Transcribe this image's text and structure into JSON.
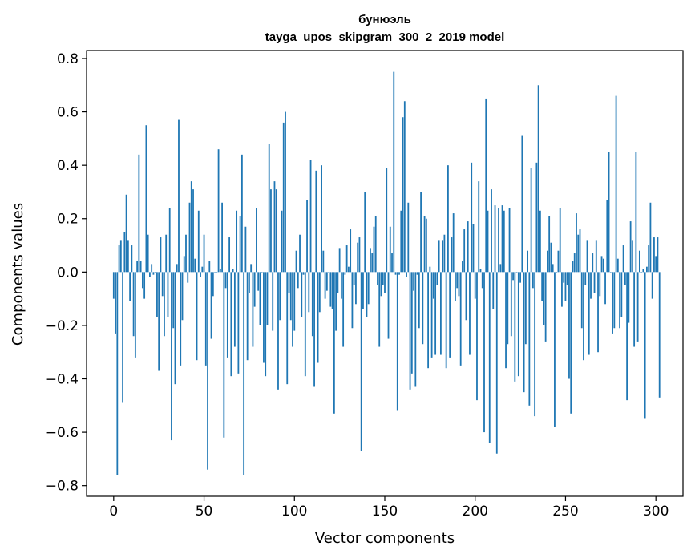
{
  "chart_data": {
    "type": "bar",
    "title": "бунюэль",
    "subtitle": "tayga_upos_skipgram_300_2_2019 model",
    "xlabel": "Vector components",
    "ylabel": "Components values",
    "xlim": [
      -15,
      315
    ],
    "ylim": [
      -0.84,
      0.83
    ],
    "xticks": [
      0,
      50,
      100,
      150,
      200,
      250,
      300
    ],
    "xtick_labels": [
      "0",
      "50",
      "100",
      "150",
      "200",
      "250",
      "300"
    ],
    "yticks": [
      -0.8,
      -0.6,
      -0.4,
      -0.2,
      0.0,
      0.2,
      0.4,
      0.6,
      0.8
    ],
    "ytick_labels": [
      "−0.8",
      "−0.6",
      "−0.4",
      "−0.2",
      "0.0",
      "0.2",
      "0.4",
      "0.6",
      "0.8"
    ],
    "grid": false,
    "bar_color": "#1f77b4",
    "values": [
      -0.1,
      -0.23,
      -0.76,
      0.1,
      0.12,
      -0.49,
      0.15,
      0.29,
      0.12,
      -0.11,
      0.1,
      -0.24,
      -0.32,
      0.04,
      0.44,
      0.04,
      -0.06,
      -0.1,
      0.55,
      0.14,
      -0.02,
      0.03,
      -0.01,
      0.0,
      -0.17,
      -0.37,
      0.13,
      -0.09,
      -0.24,
      0.14,
      -0.17,
      0.24,
      -0.63,
      -0.21,
      -0.42,
      0.03,
      0.57,
      -0.35,
      -0.18,
      0.06,
      0.14,
      -0.04,
      0.26,
      0.34,
      0.31,
      0.05,
      -0.33,
      0.23,
      -0.02,
      0.02,
      0.14,
      -0.35,
      -0.74,
      0.04,
      -0.25,
      -0.09,
      0.0,
      0.0,
      0.46,
      0.01,
      0.26,
      -0.62,
      -0.06,
      -0.32,
      0.13,
      -0.39,
      0.01,
      -0.28,
      0.23,
      -0.38,
      0.21,
      0.44,
      -0.76,
      0.17,
      -0.33,
      -0.08,
      0.03,
      -0.28,
      -0.13,
      0.24,
      -0.07,
      -0.2,
      0.0,
      -0.34,
      -0.39,
      -0.2,
      0.48,
      0.31,
      -0.22,
      0.34,
      0.31,
      -0.44,
      -0.18,
      0.23,
      0.56,
      0.6,
      -0.42,
      -0.08,
      -0.18,
      -0.28,
      -0.22,
      0.08,
      -0.06,
      0.14,
      -0.17,
      -0.01,
      -0.39,
      0.27,
      -0.15,
      0.42,
      -0.24,
      -0.43,
      0.38,
      -0.34,
      -0.15,
      0.4,
      0.08,
      -0.1,
      -0.07,
      0.0,
      -0.13,
      -0.14,
      -0.53,
      -0.22,
      -0.08,
      0.09,
      -0.1,
      -0.28,
      -0.01,
      0.1,
      0.02,
      0.16,
      -0.21,
      -0.05,
      -0.12,
      0.11,
      0.13,
      -0.67,
      -0.14,
      0.3,
      -0.17,
      -0.12,
      0.09,
      0.07,
      0.17,
      0.21,
      -0.05,
      -0.28,
      -0.09,
      -0.05,
      -0.08,
      0.39,
      -0.25,
      0.17,
      0.07,
      0.75,
      -0.01,
      -0.52,
      -0.01,
      0.23,
      0.58,
      0.64,
      -0.02,
      0.26,
      -0.44,
      -0.38,
      -0.07,
      -0.43,
      -0.01,
      -0.21,
      0.3,
      -0.27,
      0.21,
      0.2,
      -0.36,
      0.02,
      -0.32,
      -0.1,
      -0.31,
      -0.05,
      0.12,
      -0.31,
      0.12,
      0.14,
      -0.36,
      0.4,
      -0.32,
      0.13,
      0.22,
      -0.11,
      -0.06,
      -0.09,
      -0.35,
      0.04,
      0.16,
      -0.18,
      0.19,
      -0.31,
      0.41,
      0.18,
      -0.1,
      -0.48,
      0.34,
      0.01,
      -0.06,
      -0.6,
      0.65,
      0.23,
      -0.64,
      0.31,
      -0.14,
      0.25,
      -0.68,
      0.24,
      0.03,
      0.25,
      0.23,
      -0.36,
      -0.27,
      0.24,
      -0.24,
      -0.03,
      -0.41,
      0.0,
      -0.39,
      -0.04,
      0.51,
      -0.45,
      -0.27,
      0.08,
      -0.5,
      0.39,
      -0.06,
      -0.54,
      0.41,
      0.7,
      0.23,
      -0.11,
      -0.2,
      -0.26,
      0.08,
      0.21,
      0.11,
      0.03,
      -0.58,
      0.0,
      0.08,
      0.24,
      -0.13,
      -0.04,
      -0.11,
      -0.05,
      -0.4,
      -0.53,
      0.04,
      0.07,
      0.22,
      0.14,
      0.16,
      -0.21,
      -0.33,
      -0.05,
      0.12,
      -0.31,
      -0.1,
      0.07,
      -0.08,
      0.12,
      -0.3,
      -0.09,
      0.06,
      0.05,
      -0.12,
      0.27,
      0.45,
      0.0,
      -0.23,
      -0.21,
      0.66,
      0.05,
      -0.21,
      -0.17,
      0.1,
      -0.05,
      -0.48,
      -0.19,
      0.19,
      0.12,
      -0.28,
      0.45,
      -0.26,
      0.08,
      0.0,
      0.01,
      -0.55,
      0.02,
      0.1,
      0.26,
      -0.1,
      0.13,
      0.06,
      0.13,
      -0.47
    ]
  }
}
